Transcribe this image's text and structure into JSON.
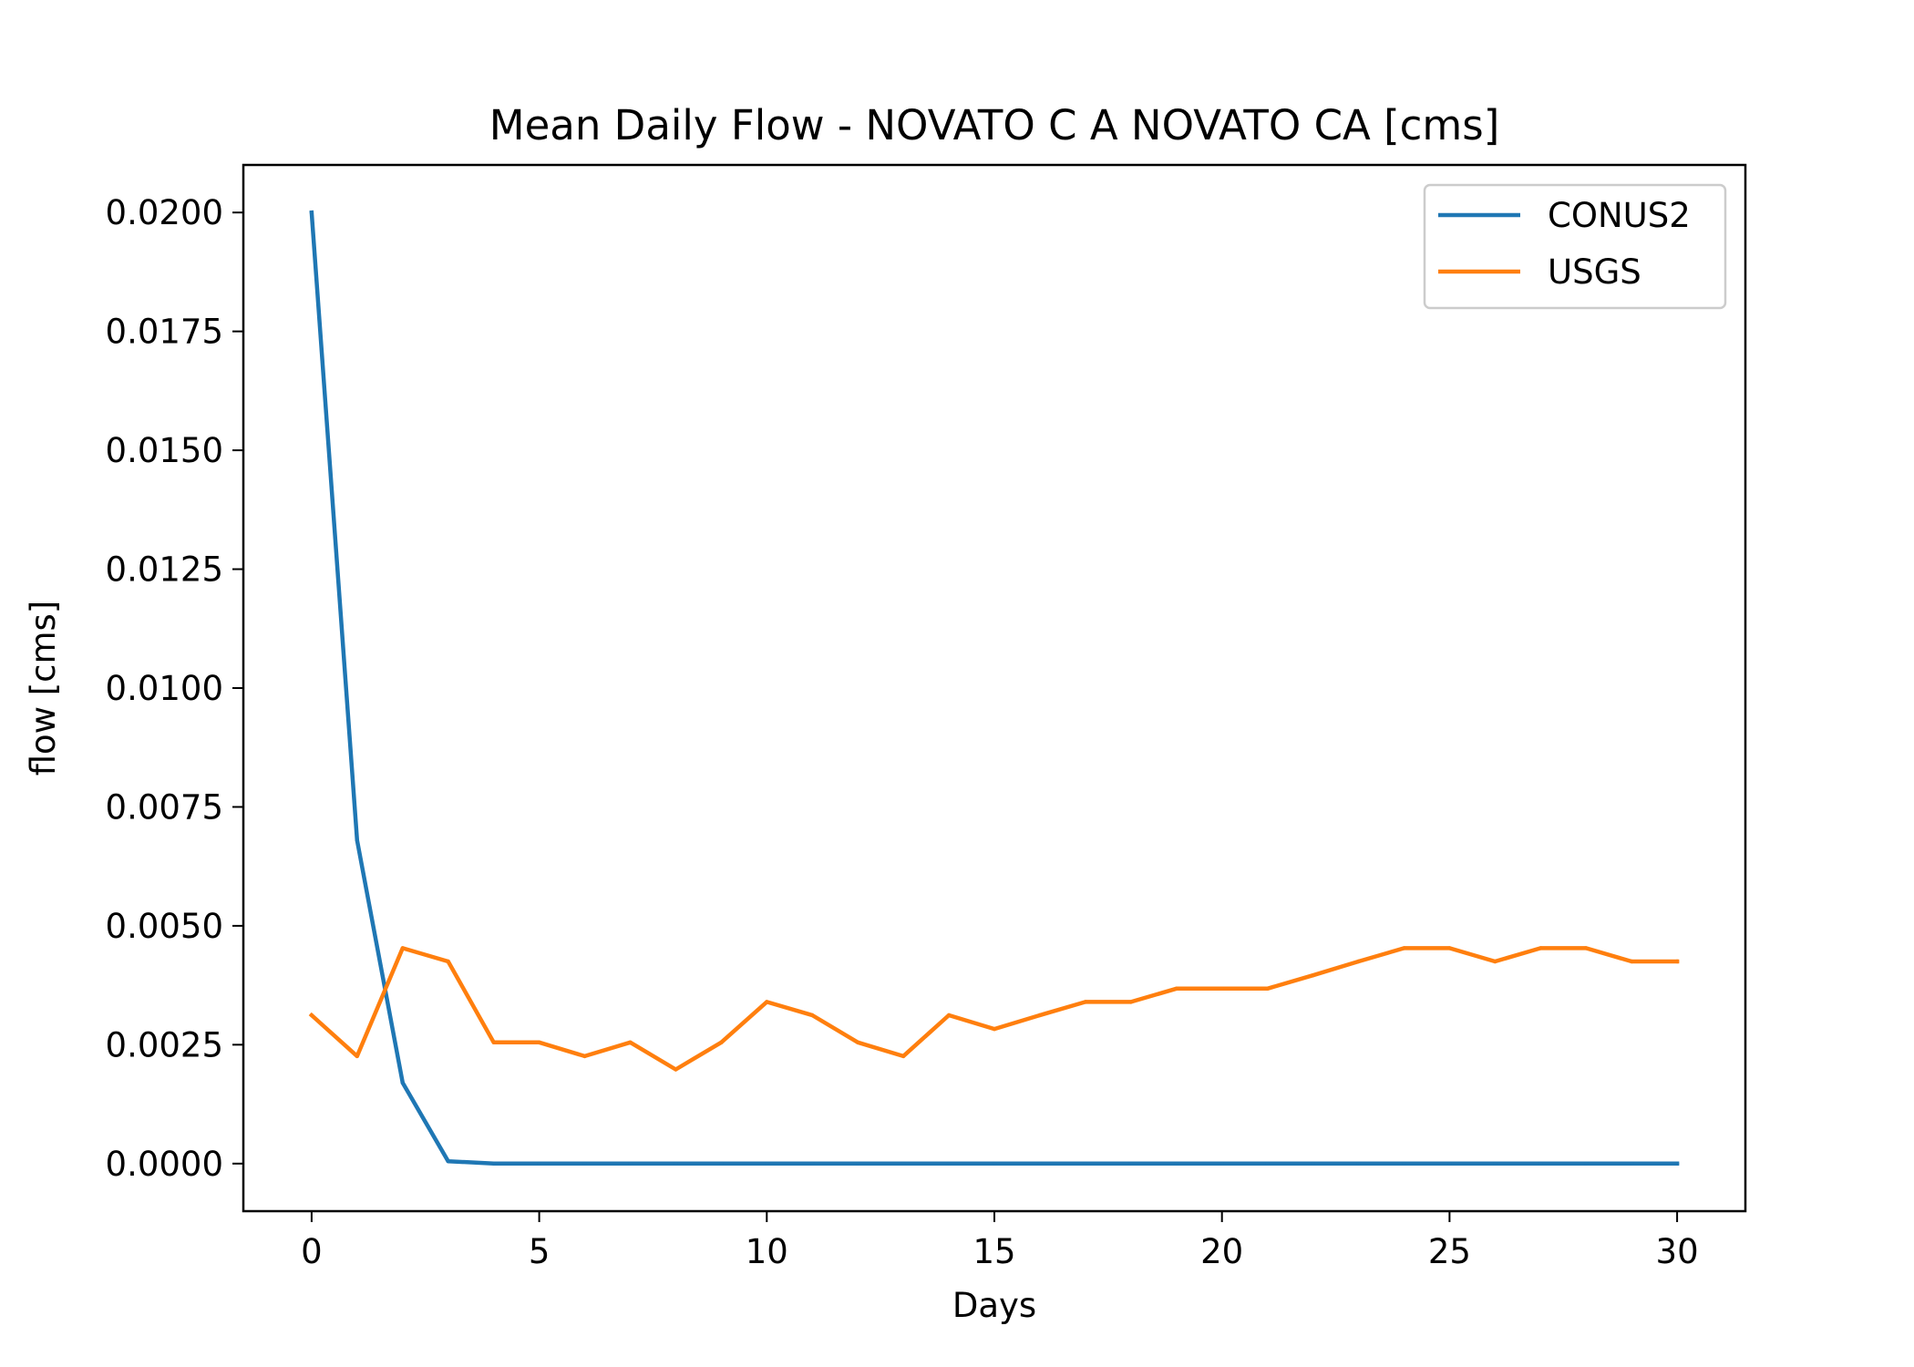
{
  "chart_data": {
    "type": "line",
    "title": "Mean Daily Flow - NOVATO C A NOVATO CA [cms]",
    "xlabel": "Days",
    "ylabel": "flow [cms]",
    "xlim": [
      -1.5,
      31.5
    ],
    "ylim": [
      -0.001,
      0.021
    ],
    "xticks": [
      0,
      5,
      10,
      15,
      20,
      25,
      30
    ],
    "xtick_labels": [
      "0",
      "5",
      "10",
      "15",
      "20",
      "25",
      "30"
    ],
    "yticks": [
      0.0,
      0.0025,
      0.005,
      0.0075,
      0.01,
      0.0125,
      0.015,
      0.0175,
      0.02
    ],
    "ytick_labels": [
      "0.0000",
      "0.0025",
      "0.0050",
      "0.0075",
      "0.0100",
      "0.0125",
      "0.0150",
      "0.0175",
      "0.0200"
    ],
    "grid": false,
    "legend_position": "upper-right",
    "x": [
      0,
      1,
      2,
      3,
      4,
      5,
      6,
      7,
      8,
      9,
      10,
      11,
      12,
      13,
      14,
      15,
      16,
      17,
      18,
      19,
      20,
      21,
      22,
      23,
      24,
      25,
      26,
      27,
      28,
      29,
      30
    ],
    "series": [
      {
        "name": "CONUS2",
        "color": "#1f77b4",
        "values": [
          0.02,
          0.0068,
          0.0017,
          5e-05,
          0.0,
          0.0,
          0.0,
          0.0,
          0.0,
          0.0,
          0.0,
          0.0,
          0.0,
          0.0,
          0.0,
          0.0,
          0.0,
          0.0,
          0.0,
          0.0,
          0.0,
          0.0,
          0.0,
          0.0,
          0.0,
          0.0,
          0.0,
          0.0,
          0.0,
          0.0,
          0.0
        ]
      },
      {
        "name": "USGS",
        "color": "#ff7f0e",
        "values": [
          0.00312,
          0.00226,
          0.00453,
          0.00425,
          0.00255,
          0.00255,
          0.00226,
          0.00255,
          0.00198,
          0.00255,
          0.0034,
          0.00312,
          0.00255,
          0.00226,
          0.00312,
          0.00283,
          0.00312,
          0.0034,
          0.0034,
          0.00368,
          0.00368,
          0.00368,
          0.00396,
          0.00425,
          0.00453,
          0.00453,
          0.00425,
          0.00453,
          0.00453,
          0.00425,
          0.00425
        ]
      }
    ]
  }
}
